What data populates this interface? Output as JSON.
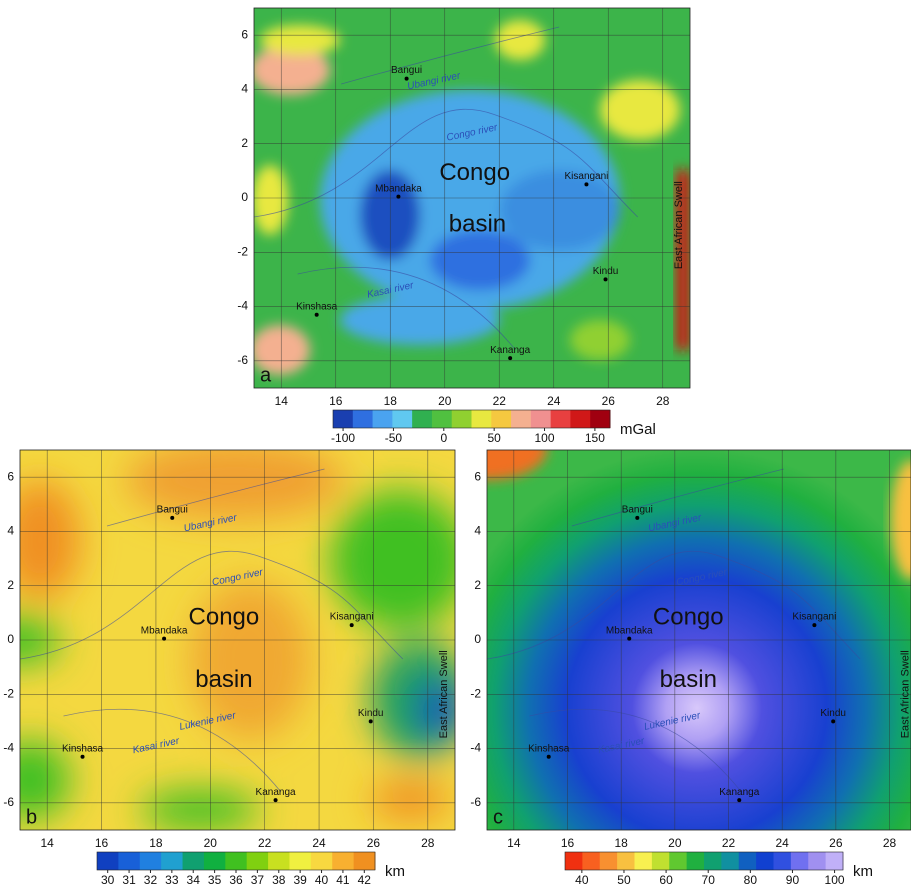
{
  "panels": [
    {
      "letter": "a",
      "xlim": [
        13,
        29
      ],
      "ylim": [
        -7,
        7
      ],
      "xticks": [
        14,
        16,
        18,
        20,
        22,
        24,
        26,
        28
      ],
      "yticks": [
        -6,
        -4,
        -2,
        0,
        2,
        4,
        6
      ],
      "cities": [
        {
          "name": "Bangui",
          "lon": 18.6,
          "lat": 4.4
        },
        {
          "name": "Mbandaka",
          "lon": 18.3,
          "lat": 0.05
        },
        {
          "name": "Kisangani",
          "lon": 25.2,
          "lat": 0.5
        },
        {
          "name": "Kindu",
          "lon": 25.9,
          "lat": -3.0
        },
        {
          "name": "Kinshasa",
          "lon": 15.3,
          "lat": -4.3
        },
        {
          "name": "Kananga",
          "lon": 22.4,
          "lat": -5.9
        }
      ],
      "rivers": [
        {
          "text": "Ubangi river",
          "lon": 19.6,
          "lat": 4.3
        },
        {
          "text": "Congo river",
          "lon": 21.0,
          "lat": 2.4
        },
        {
          "text": "Kasai river",
          "lon": 18.0,
          "lat": -3.4
        }
      ],
      "regions": [
        {
          "text": "Congo",
          "lon": 21.1,
          "lat": 0.9
        },
        {
          "text": "basin",
          "lon": 21.2,
          "lat": -1.0
        }
      ],
      "swell": {
        "text": "East African Swell",
        "lon": 28.6,
        "lat": -1.0
      },
      "colorbar": {
        "unit": "mGal",
        "range": [
          -110,
          165
        ],
        "ticks": [
          -100,
          -50,
          0,
          50,
          100,
          150
        ],
        "colors": [
          "#1a3fb0",
          "#2f6fe0",
          "#4aa3f0",
          "#60c8f0",
          "#30b050",
          "#50c040",
          "#90d030",
          "#e8e840",
          "#f5c840",
          "#f4b090",
          "#f09090",
          "#e84040",
          "#d01818",
          "#a00010"
        ]
      }
    },
    {
      "letter": "b",
      "xlim": [
        13,
        29
      ],
      "ylim": [
        -7,
        7
      ],
      "xticks": [
        14,
        16,
        18,
        20,
        22,
        24,
        26,
        28
      ],
      "yticks": [
        -6,
        -4,
        -2,
        0,
        2,
        4,
        6
      ],
      "cities": [
        {
          "name": "Bangui",
          "lon": 18.6,
          "lat": 4.5
        },
        {
          "name": "Mbandaka",
          "lon": 18.3,
          "lat": 0.05
        },
        {
          "name": "Kisangani",
          "lon": 25.2,
          "lat": 0.55
        },
        {
          "name": "Kindu",
          "lon": 25.9,
          "lat": -3.0
        },
        {
          "name": "Kinshasa",
          "lon": 15.3,
          "lat": -4.3
        },
        {
          "name": "Kananga",
          "lon": 22.4,
          "lat": -5.9
        }
      ],
      "rivers": [
        {
          "text": "Ubangi river",
          "lon": 20.0,
          "lat": 4.3
        },
        {
          "text": "Congo river",
          "lon": 21.0,
          "lat": 2.3
        },
        {
          "text": "Lukenie river",
          "lon": 19.9,
          "lat": -3.0
        },
        {
          "text": "Kasai river",
          "lon": 18.0,
          "lat": -3.9
        }
      ],
      "regions": [
        {
          "text": "Congo",
          "lon": 20.5,
          "lat": 0.8
        },
        {
          "text": "basin",
          "lon": 20.5,
          "lat": -1.5
        }
      ],
      "swell": {
        "text": "East African Swell",
        "lon": 28.6,
        "lat": -2.0
      },
      "colorbar": {
        "unit": "km",
        "range": [
          29.5,
          42.5
        ],
        "ticks": [
          30,
          31,
          32,
          33,
          34,
          35,
          36,
          37,
          38,
          39,
          40,
          41,
          42
        ],
        "colors": [
          "#1040c0",
          "#1860d8",
          "#2080e0",
          "#20a0d0",
          "#10a070",
          "#10b040",
          "#40c020",
          "#80d010",
          "#c8e020",
          "#f0f040",
          "#f8d840",
          "#f8b030",
          "#f09020"
        ]
      }
    },
    {
      "letter": "c",
      "xlim": [
        13,
        28.8
      ],
      "ylim": [
        -7,
        7
      ],
      "xticks": [
        14,
        16,
        18,
        20,
        22,
        24,
        26,
        28
      ],
      "yticks": [
        -6,
        -4,
        -2,
        0,
        2,
        4,
        6
      ],
      "cities": [
        {
          "name": "Bangui",
          "lon": 18.6,
          "lat": 4.5
        },
        {
          "name": "Mbandaka",
          "lon": 18.3,
          "lat": 0.05
        },
        {
          "name": "Kisangani",
          "lon": 25.2,
          "lat": 0.55
        },
        {
          "name": "Kindu",
          "lon": 25.9,
          "lat": -3.0
        },
        {
          "name": "Kinshasa",
          "lon": 15.3,
          "lat": -4.3
        },
        {
          "name": "Kananga",
          "lon": 22.4,
          "lat": -5.9
        }
      ],
      "rivers": [
        {
          "text": "Ubangi river",
          "lon": 20.0,
          "lat": 4.3
        },
        {
          "text": "Congo river",
          "lon": 21.0,
          "lat": 2.3
        },
        {
          "text": "Lukenie river",
          "lon": 19.9,
          "lat": -3.0
        },
        {
          "text": "Kasai river",
          "lon": 18.0,
          "lat": -3.9
        }
      ],
      "regions": [
        {
          "text": "Congo",
          "lon": 20.5,
          "lat": 0.8
        },
        {
          "text": "basin",
          "lon": 20.5,
          "lat": -1.5
        }
      ],
      "swell": {
        "text": "East African Swell",
        "lon": 28.6,
        "lat": -2.0
      },
      "colorbar": {
        "unit": "km",
        "range": [
          36,
          102
        ],
        "ticks": [
          40,
          50,
          60,
          70,
          80,
          90,
          100
        ],
        "colors": [
          "#f03010",
          "#f86020",
          "#f89030",
          "#f8c040",
          "#f8f050",
          "#c0e030",
          "#60c830",
          "#20b040",
          "#10a070",
          "#1090a0",
          "#1060c0",
          "#1040d0",
          "#3050e0",
          "#7070f0",
          "#a090f0",
          "#c0b0f8"
        ]
      }
    }
  ]
}
